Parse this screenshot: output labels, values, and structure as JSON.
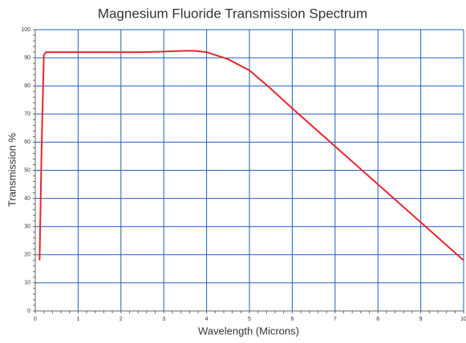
{
  "chart_data": {
    "type": "line",
    "title": "Magnesium Fluoride Transmission Spectrum",
    "xlabel": "Wavelength (Microns)",
    "ylabel": "Transmission %",
    "x": [
      0.1,
      0.15,
      0.2,
      0.25,
      0.3,
      1,
      2,
      2.5,
      3,
      3.5,
      3.7,
      4,
      4.5,
      5,
      5.5,
      6,
      7,
      8,
      9,
      10
    ],
    "series": [
      {
        "name": "Transmission",
        "color": "#e8262a",
        "values": [
          18,
          60,
          91,
          92,
          92,
          92,
          92,
          92,
          92.2,
          92.5,
          92.5,
          92,
          89.5,
          85.5,
          79,
          72,
          58.5,
          45,
          31.5,
          18
        ]
      }
    ],
    "xlim": [
      0,
      10
    ],
    "xticks": [
      0,
      1,
      2,
      3,
      4,
      5,
      6,
      7,
      8,
      9,
      10
    ],
    "ylim": [
      0,
      100
    ],
    "yticks": [
      0,
      10,
      20,
      30,
      40,
      50,
      60,
      70,
      80,
      90,
      100
    ],
    "grid": true,
    "grid_color": "#1f5fbf"
  }
}
